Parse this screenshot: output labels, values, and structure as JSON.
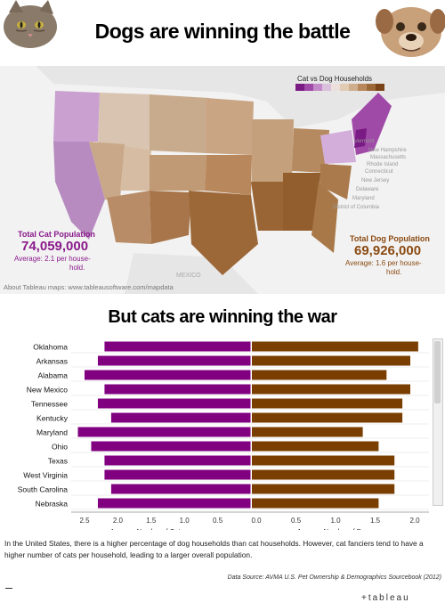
{
  "header": {
    "title": "Dogs are winning the battle",
    "subtitle": "But cats are winning the war"
  },
  "map": {
    "legend_title": "Cat vs Dog Households",
    "attribution": "About Tableau maps: www.tableausoftware.com/mapdata",
    "cat_total": {
      "label": "Total Cat Population",
      "value": "74,059,000",
      "note_line1": "Average: 2.1 per house-",
      "note_line2": "hold."
    },
    "dog_total": {
      "label": "Total Dog Population",
      "value": "69,926,000",
      "note_line1": "Average: 1.6 per house-",
      "note_line2": "hold."
    },
    "state_labels": [
      "New Hampshire",
      "Massachusetts",
      "Rhode Island",
      "Connecticut",
      "New Jersey",
      "Delaware",
      "Maryland",
      "District of Columbia"
    ],
    "other_labels": [
      "MEXICO",
      "Vermont"
    ],
    "colors": {
      "cat": "#8b1a8b",
      "dog": "#8b4a12"
    }
  },
  "chart_data": {
    "type": "bar",
    "categories": [
      "Oklahoma",
      "Arkansas",
      "Alabama",
      "New Mexico",
      "Tennessee",
      "Kentucky",
      "Maryland",
      "Ohio",
      "Texas",
      "West Virginia",
      "South Carolina",
      "Nebraska"
    ],
    "series": [
      {
        "name": "Average Number of Cats",
        "values": [
          2.2,
          2.3,
          2.5,
          2.2,
          2.3,
          2.1,
          2.6,
          2.4,
          2.2,
          2.2,
          2.1,
          2.3
        ],
        "color": "#800080"
      },
      {
        "name": "Average Number of Dogs",
        "values": [
          2.1,
          2.0,
          1.7,
          2.0,
          1.9,
          1.9,
          1.4,
          1.6,
          1.8,
          1.8,
          1.8,
          1.6
        ],
        "color": "#7a3f00"
      }
    ],
    "left_axis": {
      "label": "Average Number of Cats",
      "ticks": [
        "2.5",
        "2.0",
        "1.5",
        "1.0",
        "0.5"
      ],
      "range": [
        0,
        2.75
      ]
    },
    "right_axis": {
      "label": "Average Number of Dogs",
      "ticks": [
        "0.0",
        "0.5",
        "1.0",
        "1.5",
        "2.0"
      ],
      "range": [
        0,
        2.2
      ]
    }
  },
  "footer": {
    "body": "In the United States, there is a higher percentage of dog households than cat households. However, cat fanciers tend to have a higher number of cats per household, leading to a larger overall population.",
    "source": "Data Source: AVMA U.S. Pet Ownership & Demographics Sourcebook (2012)",
    "logo": "+tableau"
  }
}
